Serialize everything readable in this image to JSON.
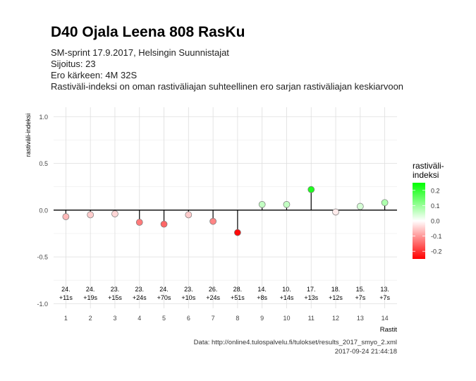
{
  "title": "D40 Ojala Leena 808 RasKu",
  "subtitle": {
    "event": "SM-sprint 17.9.2017, Helsingin Suunnistajat",
    "placement": "Sijoitus: 23",
    "gap": "Ero kärkeen: 4M 32S",
    "description": "Rastiväli-indeksi on oman rastiväliajan suhteellinen ero sarjan rastiväliajan keskiarvoon"
  },
  "caption": {
    "source": "Data: http://online4.tulospalvelu.fi/tulokset/results_2017_smyo_2.xml",
    "timestamp": "2017-09-24 21:44:18"
  },
  "colors": {
    "negative": "#ff0000",
    "zero": "#ffffff",
    "positive": "#00ff00"
  },
  "chart_data": {
    "type": "scatter",
    "style": "lollipop",
    "xlabel": "Rastit",
    "ylabel": "rastiväli-indeksi",
    "ylim": [
      -1.05,
      1.1
    ],
    "yticks": [
      -1.0,
      -0.5,
      0.0,
      0.5,
      1.0
    ],
    "ytick_labels": [
      "-1.0",
      "-0.5",
      "0.0",
      "0.5",
      "1.0"
    ],
    "x": [
      1,
      2,
      3,
      4,
      5,
      6,
      7,
      8,
      9,
      10,
      11,
      12,
      13,
      14
    ],
    "values": [
      -0.07,
      -0.05,
      -0.04,
      -0.13,
      -0.15,
      -0.05,
      -0.12,
      -0.24,
      0.06,
      0.06,
      0.22,
      -0.02,
      0.04,
      0.08
    ],
    "rank_labels": [
      "24.",
      "24.",
      "23.",
      "23.",
      "24.",
      "23.",
      "26.",
      "28.",
      "14.",
      "10.",
      "17.",
      "18.",
      "15.",
      "13."
    ],
    "time_labels": [
      "+11s",
      "+19s",
      "+15s",
      "+24s",
      "+70s",
      "+10s",
      "+24s",
      "+51s",
      "+8s",
      "+14s",
      "+13s",
      "+12s",
      "+7s",
      "+7s"
    ],
    "grid": true,
    "legend": {
      "title_line1": "rastiväli-",
      "title_line2": "indeksi",
      "ticks": [
        0.2,
        0.1,
        0.0,
        -0.1,
        -0.2
      ],
      "tick_labels": [
        "0.2",
        "0.1",
        "0.0",
        "-0.1",
        "-0.2"
      ],
      "range": [
        -0.25,
        0.25
      ],
      "placement": "right"
    }
  }
}
